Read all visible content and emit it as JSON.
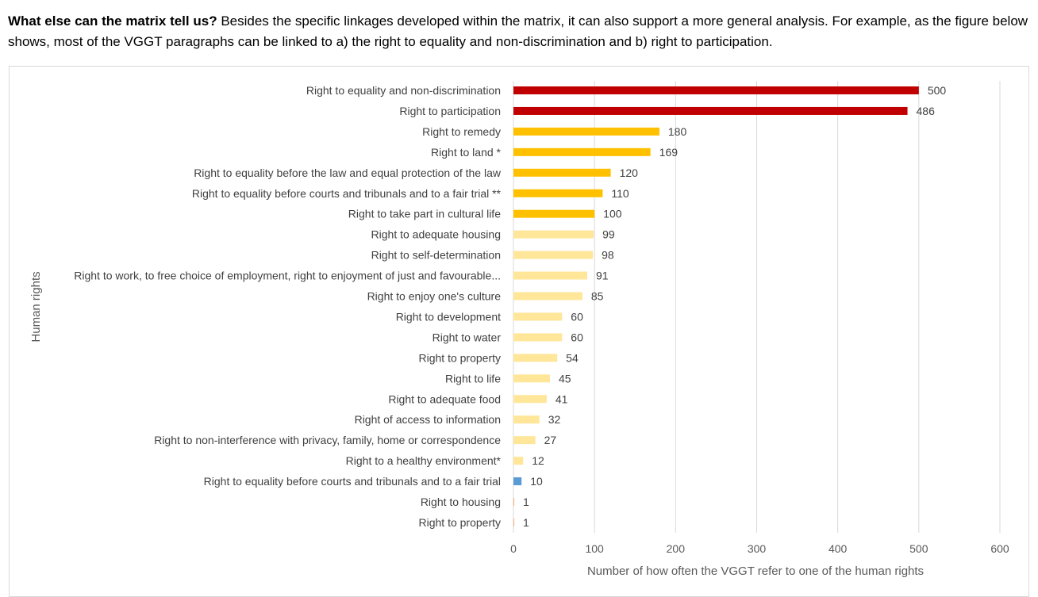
{
  "intro": {
    "lead": "What else can the matrix tell us?",
    "text": "Besides the specific linkages developed within the matrix, it can also support a more general analysis. For example, as the figure below shows, most of the VGGT paragraphs can be linked to a) the right to equality and non-discrimination and b) right to participation."
  },
  "colors": {
    "top": "#c00000",
    "high": "#ffc000",
    "medium": "#ffe699",
    "blue": "#5b9bd5",
    "low": "#f4b183",
    "grid": "#d9d9d9"
  },
  "chart_data": {
    "type": "bar",
    "orientation": "horizontal",
    "title": "",
    "xlabel": "Number of how often the VGGT refer to one of the human rights",
    "ylabel": "Human rights",
    "xlim": [
      0,
      600
    ],
    "xticks": [
      0,
      100,
      200,
      300,
      400,
      500,
      600
    ],
    "grid": true,
    "categories": [
      "Right to equality and non-discrimination",
      "Right to participation",
      "Right to remedy",
      "Right to land *",
      "Right to equality before the law and equal protection of the law",
      "Right to equality before courts and tribunals and to a fair trial **",
      "Right to take part in cultural life",
      "Right to adequate housing",
      "Right to self-determination",
      "Right to work, to free choice of employment, right to enjoyment of just and favourable...",
      "Right to enjoy one's culture",
      "Right to development",
      "Right to water",
      "Right to property",
      "Right to life",
      "Right to adequate food",
      "Right of access to information",
      "Right to non-interference with privacy, family, home or correspondence",
      "Right to a healthy environment*",
      "Right to equality before courts and tribunals and to a fair trial",
      "Right to housing",
      "Right to property"
    ],
    "values": [
      500,
      486,
      180,
      169,
      120,
      110,
      100,
      99,
      98,
      91,
      85,
      60,
      60,
      54,
      45,
      41,
      32,
      27,
      12,
      10,
      1,
      1
    ],
    "bar_color_keys": [
      "top",
      "top",
      "high",
      "high",
      "high",
      "high",
      "high",
      "medium",
      "medium",
      "medium",
      "medium",
      "medium",
      "medium",
      "medium",
      "medium",
      "medium",
      "medium",
      "medium",
      "medium",
      "blue",
      "low",
      "low"
    ]
  }
}
